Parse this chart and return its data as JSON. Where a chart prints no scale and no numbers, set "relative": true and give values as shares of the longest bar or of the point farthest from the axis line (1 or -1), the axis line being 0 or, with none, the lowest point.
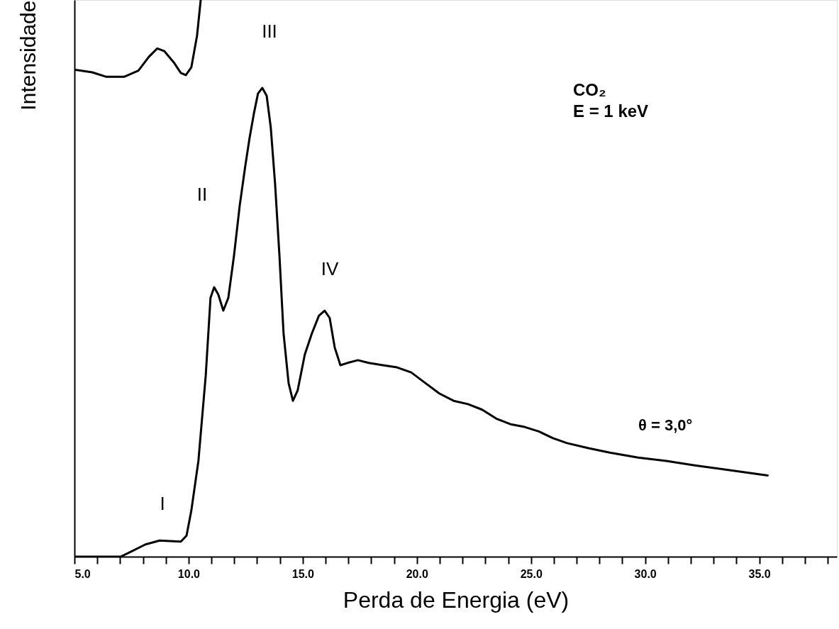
{
  "chart_data": {
    "type": "line",
    "relative": true,
    "xlabel": "Perda de Energia (eV)",
    "ylabel": "Intensidade",
    "xlim": [
      5,
      38.4
    ],
    "xticks": [
      {
        "value": 5,
        "label": "5.0"
      },
      {
        "value": 6,
        "label": null
      },
      {
        "value": 7,
        "label": null
      },
      {
        "value": 8,
        "label": null
      },
      {
        "value": 9,
        "label": null
      },
      {
        "value": 10,
        "label": "10.0"
      },
      {
        "value": 11,
        "label": null
      },
      {
        "value": 12,
        "label": null
      },
      {
        "value": 13,
        "label": null
      },
      {
        "value": 14,
        "label": null
      },
      {
        "value": 15,
        "label": "15.0"
      },
      {
        "value": 16,
        "label": null
      },
      {
        "value": 17,
        "label": null
      },
      {
        "value": 18,
        "label": null
      },
      {
        "value": 19,
        "label": null
      },
      {
        "value": 20,
        "label": "20.0"
      },
      {
        "value": 21,
        "label": null
      },
      {
        "value": 22,
        "label": null
      },
      {
        "value": 23,
        "label": null
      },
      {
        "value": 24,
        "label": null
      },
      {
        "value": 25,
        "label": "25.0"
      },
      {
        "value": 26,
        "label": null
      },
      {
        "value": 27,
        "label": null
      },
      {
        "value": 28,
        "label": null
      },
      {
        "value": 29,
        "label": null
      },
      {
        "value": 30,
        "label": "30.0"
      },
      {
        "value": 31,
        "label": null
      },
      {
        "value": 32,
        "label": null
      },
      {
        "value": 33,
        "label": null
      },
      {
        "value": 34,
        "label": null
      },
      {
        "value": 35,
        "label": "35.0"
      },
      {
        "value": 36,
        "label": null
      },
      {
        "value": 37,
        "label": null
      },
      {
        "value": 38,
        "label": null
      }
    ],
    "grid": false,
    "marker": "none",
    "line_style": "solid",
    "series": [
      {
        "color": "#000000",
        "x": [
          5.0,
          7.02,
          7.48,
          8.11,
          8.73,
          9.19,
          9.66,
          9.91,
          10.12,
          10.43,
          10.75,
          10.96,
          11.12,
          11.3,
          11.52,
          11.74,
          11.99,
          12.24,
          12.48,
          12.67,
          12.86,
          13.04,
          13.23,
          13.42,
          13.6,
          13.79,
          13.98,
          14.16,
          14.38,
          14.57,
          14.78,
          15.09,
          15.4,
          15.71,
          15.96,
          16.18,
          16.4,
          16.65,
          16.96,
          17.42,
          17.89,
          18.51,
          19.13,
          19.75,
          20.37,
          20.99,
          21.61,
          22.24,
          22.86,
          23.48,
          24.1,
          24.72,
          25.34,
          25.96,
          26.58,
          27.52,
          28.45,
          29.69,
          30.93,
          32.17,
          33.42,
          35.37
        ],
        "values": [
          0,
          0,
          0.009,
          0.022,
          0.029,
          0.028,
          0.027,
          0.038,
          0.083,
          0.172,
          0.325,
          0.465,
          0.484,
          0.471,
          0.442,
          0.465,
          0.541,
          0.631,
          0.701,
          0.752,
          0.796,
          0.832,
          0.842,
          0.828,
          0.771,
          0.669,
          0.541,
          0.401,
          0.312,
          0.28,
          0.299,
          0.363,
          0.401,
          0.433,
          0.442,
          0.429,
          0.376,
          0.344,
          0.348,
          0.353,
          0.348,
          0.344,
          0.34,
          0.331,
          0.312,
          0.293,
          0.28,
          0.274,
          0.264,
          0.248,
          0.238,
          0.233,
          0.225,
          0.213,
          0.204,
          0.195,
          0.187,
          0.178,
          0.172,
          0.164,
          0.157,
          0.146
        ]
      },
      {
        "color": "#000000",
        "x": [
          5.0,
          5.78,
          6.4,
          7.17,
          7.8,
          8.26,
          8.63,
          8.94,
          9.35,
          9.66,
          9.88,
          10.12,
          10.37,
          10.53
        ],
        "values": [
          0.875,
          0.87,
          0.862,
          0.862,
          0.873,
          0.898,
          0.913,
          0.908,
          0.888,
          0.869,
          0.865,
          0.879,
          0.936,
          1.0
        ]
      }
    ],
    "annotations": [
      "I",
      "II",
      "III",
      "IV",
      "CO₂",
      "E = 1 keV",
      "θ = 3,0°"
    ]
  }
}
